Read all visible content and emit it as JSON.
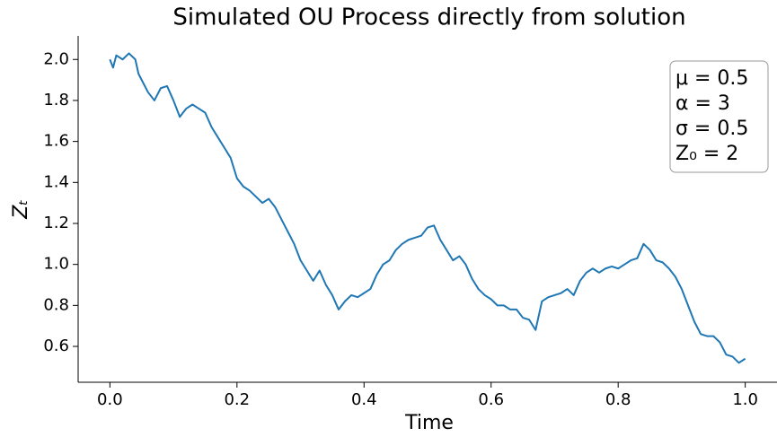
{
  "chart_data": {
    "type": "line",
    "title": "Simulated OU Process directly from solution",
    "xlabel": "Time",
    "ylabel": "Zₜ",
    "annotation": [
      "μ = 0.5",
      "α = 3",
      "σ = 0.5",
      "Z₀ = 2"
    ],
    "xlim": [
      -0.05,
      1.05
    ],
    "ylim": [
      0.425,
      2.115
    ],
    "xticks": [
      {
        "value": 0,
        "label": "0.0"
      },
      0.2,
      0.4,
      0.6,
      0.8,
      {
        "value": 1,
        "label": "1.0"
      }
    ],
    "yticks": [
      0.6,
      0.8,
      {
        "value": 1,
        "label": "1.0"
      },
      1.2,
      1.4,
      1.6,
      1.8,
      {
        "value": 2,
        "label": "2.0"
      }
    ],
    "grid": false,
    "x": [
      0,
      0.005,
      0.01,
      0.02,
      0.03,
      0.04,
      0.045,
      0.05,
      0.06,
      0.07,
      0.08,
      0.09,
      0.1,
      0.11,
      0.12,
      0.13,
      0.14,
      0.15,
      0.16,
      0.17,
      0.18,
      0.19,
      0.2,
      0.21,
      0.22,
      0.23,
      0.24,
      0.25,
      0.26,
      0.27,
      0.28,
      0.29,
      0.3,
      0.31,
      0.32,
      0.33,
      0.34,
      0.35,
      0.36,
      0.37,
      0.38,
      0.39,
      0.4,
      0.41,
      0.42,
      0.43,
      0.44,
      0.45,
      0.46,
      0.47,
      0.48,
      0.49,
      0.5,
      0.51,
      0.52,
      0.53,
      0.54,
      0.55,
      0.56,
      0.57,
      0.58,
      0.59,
      0.6,
      0.61,
      0.62,
      0.63,
      0.64,
      0.65,
      0.66,
      0.67,
      0.68,
      0.69,
      0.7,
      0.71,
      0.72,
      0.73,
      0.74,
      0.75,
      0.76,
      0.77,
      0.78,
      0.79,
      0.8,
      0.81,
      0.82,
      0.83,
      0.84,
      0.85,
      0.86,
      0.87,
      0.88,
      0.89,
      0.9,
      0.91,
      0.92,
      0.93,
      0.94,
      0.95,
      0.96,
      0.97,
      0.98,
      0.99,
      1.0
    ],
    "series": [
      {
        "name": "Z",
        "color": "#1f77b4",
        "values": [
          2.0,
          1.96,
          2.02,
          2.0,
          2.03,
          2.0,
          1.93,
          1.9,
          1.84,
          1.8,
          1.86,
          1.87,
          1.8,
          1.72,
          1.76,
          1.78,
          1.76,
          1.74,
          1.67,
          1.62,
          1.57,
          1.52,
          1.42,
          1.38,
          1.36,
          1.33,
          1.3,
          1.32,
          1.28,
          1.22,
          1.16,
          1.1,
          1.02,
          0.97,
          0.92,
          0.97,
          0.9,
          0.85,
          0.78,
          0.82,
          0.85,
          0.84,
          0.86,
          0.88,
          0.95,
          1.0,
          1.02,
          1.07,
          1.1,
          1.12,
          1.13,
          1.14,
          1.18,
          1.19,
          1.12,
          1.07,
          1.02,
          1.04,
          1.0,
          0.93,
          0.88,
          0.85,
          0.83,
          0.8,
          0.8,
          0.78,
          0.78,
          0.74,
          0.73,
          0.68,
          0.82,
          0.84,
          0.85,
          0.86,
          0.88,
          0.85,
          0.92,
          0.96,
          0.98,
          0.96,
          0.98,
          0.99,
          0.98,
          1.0,
          1.02,
          1.03,
          1.1,
          1.07,
          1.02,
          1.01,
          0.98,
          0.94,
          0.88,
          0.8,
          0.72,
          0.66,
          0.65,
          0.65,
          0.62,
          0.56,
          0.55,
          0.52,
          0.54
        ]
      }
    ]
  }
}
